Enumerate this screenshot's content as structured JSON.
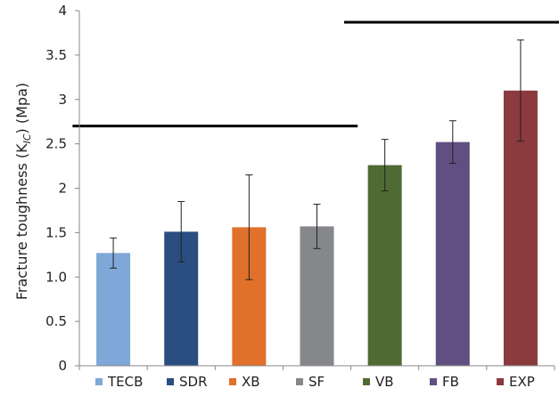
{
  "chart_data": {
    "type": "bar",
    "title": "",
    "xlabel": "",
    "ylabel": "Fracture toughness (K",
    "ylabel_sub": "IC",
    "ylabel_suffix": ") (Mpa)",
    "ylim": [
      0,
      4
    ],
    "yticks": [
      0,
      0.5,
      1.0,
      1.5,
      2,
      2.5,
      3,
      3.5,
      4
    ],
    "ytick_labels": [
      "0",
      "0.5",
      "1.0",
      "1.5",
      "2",
      "2.5",
      "3",
      "3.5",
      "4"
    ],
    "grid": false,
    "legend_position": "bottom",
    "categories": [
      "TECB",
      "SDR",
      "XB",
      "SF",
      "VB",
      "FB",
      "EXP"
    ],
    "values": [
      1.27,
      1.51,
      1.56,
      1.57,
      2.26,
      2.52,
      3.1
    ],
    "error": [
      0.17,
      0.34,
      0.59,
      0.25,
      0.29,
      0.24,
      0.57
    ],
    "colors": [
      "#7ea8d8",
      "#2a4e80",
      "#e0702a",
      "#85878a",
      "#4f6a33",
      "#614f82",
      "#8b3a3e"
    ],
    "group_lines": [
      {
        "from_category": "TECB",
        "to_category": "SF",
        "y": 2.7
      },
      {
        "from_category": "VB",
        "to_category": "EXP",
        "y": 3.87
      }
    ]
  }
}
